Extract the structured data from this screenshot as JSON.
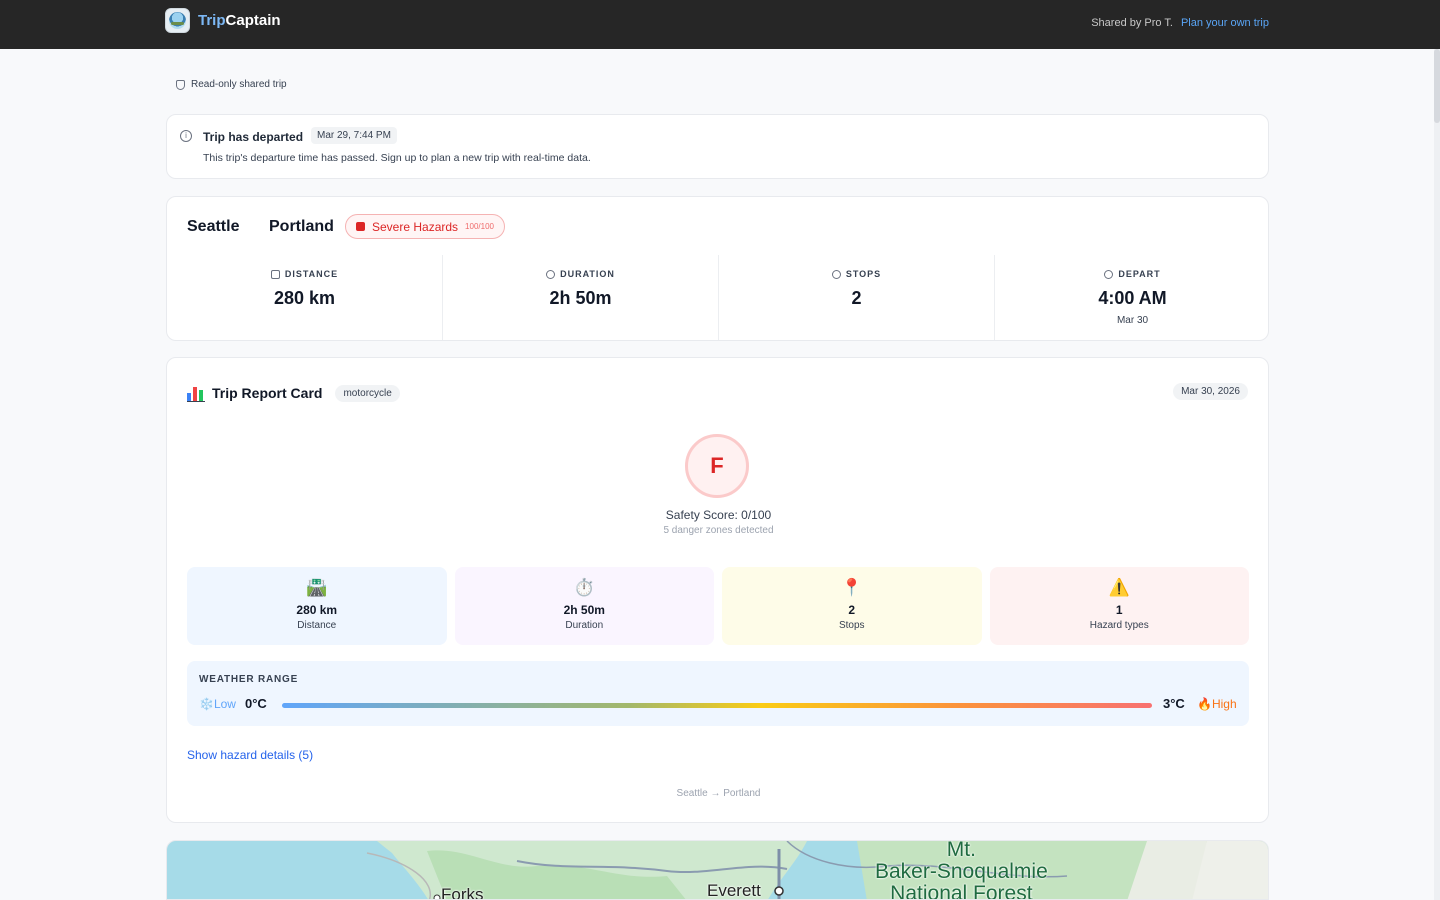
{
  "header": {
    "brand_prefix": "Trip",
    "brand_suffix": "Captain",
    "shared_by": "Shared by Pro T.",
    "plan_link": "Plan your own trip"
  },
  "readonly_label": "Read-only shared trip",
  "notice": {
    "title": "Trip has departed",
    "date": "Mar 29, 7:44 PM",
    "message": "This trip's departure time has passed. Sign up to plan a new trip with real-time data."
  },
  "route": {
    "from": "Seattle",
    "to": "Portland",
    "hazard_label": "Severe Hazards",
    "hazard_score": "100/100",
    "stats": [
      {
        "label": "DISTANCE",
        "value": "280 km",
        "icon": "route-icon"
      },
      {
        "label": "DURATION",
        "value": "2h 50m",
        "icon": "clock-icon"
      },
      {
        "label": "STOPS",
        "value": "2",
        "icon": "pin-icon"
      },
      {
        "label": "DEPART",
        "value": "4:00 AM",
        "sub": "Mar 30",
        "icon": "clock-icon"
      }
    ]
  },
  "report": {
    "title": "Trip Report Card",
    "vehicle": "motorcycle",
    "date": "Mar 30, 2026",
    "grade": "F",
    "safety_score": "Safety Score: 0/100",
    "danger_zones": "5 danger zones detected",
    "tiles": [
      {
        "emoji": "🛣️",
        "value": "280 km",
        "label": "Distance"
      },
      {
        "emoji": "⏱️",
        "value": "2h 50m",
        "label": "Duration"
      },
      {
        "emoji": "📍",
        "value": "2",
        "label": "Stops"
      },
      {
        "emoji": "⚠️",
        "value": "1",
        "label": "Hazard types"
      }
    ],
    "weather": {
      "label": "WEATHER RANGE",
      "low_label": "❄️Low",
      "low_value": "0°C",
      "high_value": "3°C",
      "high_label": "🔥High"
    },
    "hazard_link": "Show hazard details (5)",
    "route_footer": "Seattle → Portland"
  },
  "map": {
    "labels": {
      "forks": "Forks",
      "everett": "Everett",
      "forest_line1": "Mt.",
      "forest_line2": "Baker-Snoqualmie",
      "forest_line3": "National Forest"
    }
  },
  "colors": {
    "accent": "#5aa5f5",
    "danger": "#dc2626",
    "topbar": "#262626"
  }
}
